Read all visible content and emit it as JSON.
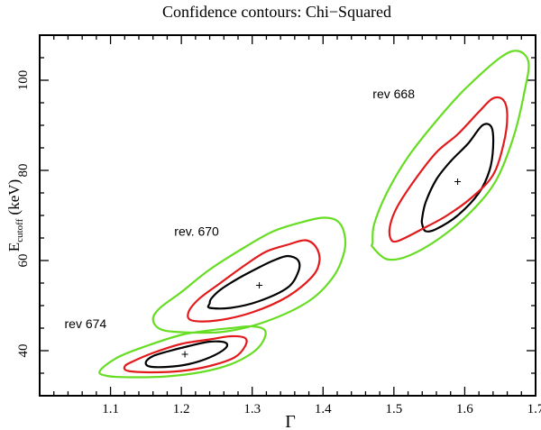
{
  "chart_data": {
    "type": "contour",
    "title": "Confidence contours: Chi−Squared",
    "xlabel": "Γ",
    "ylabel_main": "E",
    "ylabel_sub": "cutoff",
    "ylabel_unit": " (keV)",
    "xlim": [
      1.0,
      1.7
    ],
    "ylim": [
      30,
      110
    ],
    "xticks": [
      1.1,
      1.2,
      1.3,
      1.4,
      1.5,
      1.6,
      1.7
    ],
    "xtick_labels": [
      "1.1",
      "1.2",
      "1.3",
      "1.4",
      "1.5",
      "1.6",
      "1.7"
    ],
    "yticks": [
      40,
      60,
      80,
      100
    ],
    "ytick_labels": [
      "40",
      "60",
      "80",
      "100"
    ],
    "contour_colors": {
      "inner": "#000000",
      "middle": "#e31a1c",
      "outer": "#66dd22"
    },
    "series": [
      {
        "name": "rev 668",
        "best_fit": [
          1.59,
          77.5
        ],
        "contours": [
          {
            "level": "inner",
            "points": [
              [
                1.54,
                68
              ],
              [
                1.545,
                66.5
              ],
              [
                1.56,
                67
              ],
              [
                1.59,
                70
              ],
              [
                1.62,
                75
              ],
              [
                1.635,
                80
              ],
              [
                1.64,
                85
              ],
              [
                1.638,
                89.5
              ],
              [
                1.625,
                90
              ],
              [
                1.605,
                86
              ],
              [
                1.58,
                82
              ],
              [
                1.56,
                78
              ],
              [
                1.545,
                73
              ],
              [
                1.54,
                69.5
              ]
            ]
          },
          {
            "level": "middle",
            "points": [
              [
                1.495,
                65
              ],
              [
                1.505,
                64.3
              ],
              [
                1.54,
                67
              ],
              [
                1.575,
                70
              ],
              [
                1.61,
                74
              ],
              [
                1.64,
                79
              ],
              [
                1.655,
                86
              ],
              [
                1.66,
                92
              ],
              [
                1.655,
                95.5
              ],
              [
                1.64,
                96
              ],
              [
                1.62,
                93
              ],
              [
                1.59,
                88
              ],
              [
                1.56,
                84
              ],
              [
                1.53,
                78
              ],
              [
                1.505,
                72
              ],
              [
                1.495,
                68
              ]
            ]
          },
          {
            "level": "outer",
            "points": [
              [
                1.47,
                63
              ],
              [
                1.49,
                60.3
              ],
              [
                1.52,
                61
              ],
              [
                1.565,
                65
              ],
              [
                1.61,
                71
              ],
              [
                1.645,
                78
              ],
              [
                1.67,
                88
              ],
              [
                1.685,
                98
              ],
              [
                1.69,
                104
              ],
              [
                1.675,
                106.5
              ],
              [
                1.65,
                105
              ],
              [
                1.6,
                98
              ],
              [
                1.56,
                91
              ],
              [
                1.52,
                83
              ],
              [
                1.49,
                75
              ],
              [
                1.472,
                68
              ],
              [
                1.47,
                64
              ]
            ]
          }
        ]
      },
      {
        "name": "rev. 670",
        "best_fit": [
          1.31,
          54.5
        ],
        "contours": [
          {
            "level": "inner",
            "points": [
              [
                1.24,
                50.5
              ],
              [
                1.24,
                49.5
              ],
              [
                1.27,
                49.5
              ],
              [
                1.31,
                51
              ],
              [
                1.35,
                54
              ],
              [
                1.365,
                57.5
              ],
              [
                1.365,
                60
              ],
              [
                1.35,
                61
              ],
              [
                1.33,
                60
              ],
              [
                1.31,
                58.5
              ],
              [
                1.28,
                56
              ],
              [
                1.255,
                53.5
              ],
              [
                1.242,
                51.5
              ]
            ]
          },
          {
            "level": "middle",
            "points": [
              [
                1.21,
                48.5
              ],
              [
                1.215,
                46.7
              ],
              [
                1.25,
                46.7
              ],
              [
                1.3,
                48.5
              ],
              [
                1.35,
                52
              ],
              [
                1.385,
                56.5
              ],
              [
                1.395,
                60
              ],
              [
                1.39,
                63
              ],
              [
                1.375,
                64.5
              ],
              [
                1.35,
                63.5
              ],
              [
                1.32,
                62
              ],
              [
                1.29,
                59
              ],
              [
                1.255,
                55
              ],
              [
                1.225,
                51.5
              ]
            ]
          },
          {
            "level": "outer",
            "points": [
              [
                1.16,
                47
              ],
              [
                1.17,
                44.8
              ],
              [
                1.2,
                44.1
              ],
              [
                1.26,
                44.2
              ],
              [
                1.32,
                46.5
              ],
              [
                1.38,
                51
              ],
              [
                1.415,
                56.5
              ],
              [
                1.43,
                62
              ],
              [
                1.43,
                66
              ],
              [
                1.42,
                68.8
              ],
              [
                1.4,
                69.5
              ],
              [
                1.37,
                68.5
              ],
              [
                1.33,
                66.5
              ],
              [
                1.29,
                63
              ],
              [
                1.24,
                58
              ],
              [
                1.2,
                53
              ],
              [
                1.17,
                49.5
              ]
            ]
          }
        ]
      },
      {
        "name": "rev 674",
        "best_fit": [
          1.205,
          39.2
        ],
        "contours": [
          {
            "level": "inner",
            "points": [
              [
                1.15,
                37.5
              ],
              [
                1.155,
                36.5
              ],
              [
                1.18,
                36.4
              ],
              [
                1.21,
                37
              ],
              [
                1.24,
                38.5
              ],
              [
                1.262,
                40.5
              ],
              [
                1.262,
                41.8
              ],
              [
                1.24,
                42
              ],
              [
                1.21,
                41
              ],
              [
                1.18,
                39.8
              ],
              [
                1.16,
                38.8
              ]
            ]
          },
          {
            "level": "middle",
            "points": [
              [
                1.12,
                36.5
              ],
              [
                1.125,
                35.5
              ],
              [
                1.16,
                35.2
              ],
              [
                1.2,
                35.5
              ],
              [
                1.24,
                36.6
              ],
              [
                1.275,
                38.5
              ],
              [
                1.29,
                41
              ],
              [
                1.29,
                42.8
              ],
              [
                1.27,
                43.2
              ],
              [
                1.24,
                42.5
              ],
              [
                1.2,
                41.5
              ],
              [
                1.16,
                39.5
              ],
              [
                1.13,
                37.5
              ]
            ]
          },
          {
            "level": "outer",
            "points": [
              [
                1.085,
                35.5
              ],
              [
                1.095,
                34.4
              ],
              [
                1.13,
                34.1
              ],
              [
                1.18,
                34.3
              ],
              [
                1.23,
                35.3
              ],
              [
                1.27,
                37
              ],
              [
                1.3,
                39.5
              ],
              [
                1.315,
                42
              ],
              [
                1.318,
                44.5
              ],
              [
                1.3,
                45.4
              ],
              [
                1.27,
                45
              ],
              [
                1.24,
                44.5
              ],
              [
                1.2,
                43.5
              ],
              [
                1.15,
                41
              ],
              [
                1.11,
                38.5
              ]
            ]
          }
        ]
      }
    ]
  }
}
